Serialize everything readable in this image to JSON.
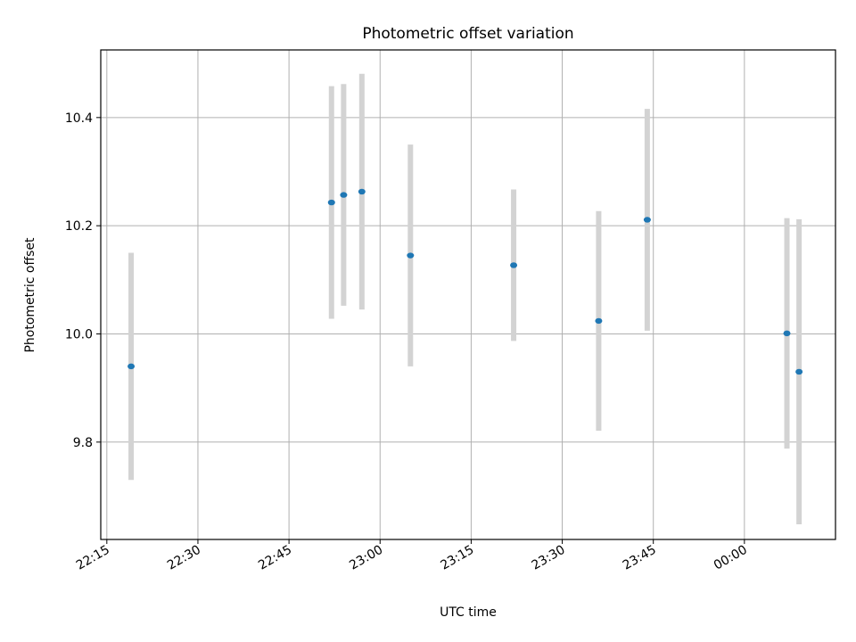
{
  "chart_data": {
    "type": "scatter",
    "title": "Photometric offset variation",
    "xlabel": "UTC time",
    "ylabel": "Photometric offset",
    "x_ticks": [
      "22:15",
      "22:30",
      "22:45",
      "23:00",
      "23:15",
      "23:30",
      "23:45",
      "00:00"
    ],
    "y_ticks": [
      "9.8",
      "10.0",
      "10.2",
      "10.4"
    ],
    "xlim": [
      "22:14",
      "00:15"
    ],
    "ylim": [
      9.62,
      10.525
    ],
    "grid": true,
    "series": [
      {
        "points": [
          {
            "x": "22:19",
            "y": 9.94,
            "err": 0.21
          },
          {
            "x": "22:52",
            "y": 10.243,
            "err": 0.215
          },
          {
            "x": "22:54",
            "y": 10.257,
            "err": 0.205
          },
          {
            "x": "22:57",
            "y": 10.263,
            "err": 0.218
          },
          {
            "x": "23:05",
            "y": 10.145,
            "err": 0.205
          },
          {
            "x": "23:22",
            "y": 10.127,
            "err": 0.14
          },
          {
            "x": "23:36",
            "y": 10.024,
            "err": 0.203
          },
          {
            "x": "23:44",
            "y": 10.211,
            "err": 0.205
          },
          {
            "x": "00:07",
            "y": 10.001,
            "err": 0.213
          },
          {
            "x": "00:09",
            "y": 9.93,
            "err": 0.282
          }
        ],
        "marker_color": "#1f77b4",
        "errorbar_color": "#d3d3d3"
      }
    ]
  }
}
